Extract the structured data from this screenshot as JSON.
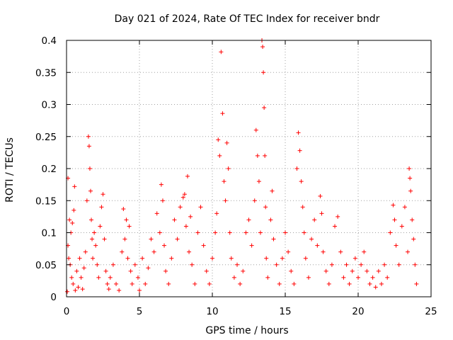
{
  "chart_data": {
    "type": "scatter",
    "title": "Day 021 of 2024, Rate Of TEC Index for receiver bndr",
    "xlabel": "GPS time / hours",
    "ylabel": "ROTI / TECUs",
    "xlim": [
      0,
      25
    ],
    "ylim": [
      0,
      0.4
    ],
    "xticks": [
      "0",
      "5",
      "10",
      "15",
      "20",
      "25"
    ],
    "yticks": [
      "0",
      "0.05",
      "0.1",
      "0.15",
      "0.2",
      "0.25",
      "0.3",
      "0.35",
      "0.4"
    ],
    "grid": true,
    "marker": "+",
    "color": "#ff0000",
    "points": [
      [
        0.05,
        0.008
      ],
      [
        0.1,
        0.185
      ],
      [
        0.1,
        0.08
      ],
      [
        0.15,
        0.06
      ],
      [
        0.2,
        0.12
      ],
      [
        0.25,
        0.05
      ],
      [
        0.3,
        0.1
      ],
      [
        0.35,
        0.03
      ],
      [
        0.4,
        0.115
      ],
      [
        0.45,
        0.02
      ],
      [
        0.5,
        0.135
      ],
      [
        0.55,
        0.172
      ],
      [
        0.6,
        0.01
      ],
      [
        0.7,
        0.04
      ],
      [
        0.8,
        0.015
      ],
      [
        0.9,
        0.06
      ],
      [
        1.0,
        0.03
      ],
      [
        1.1,
        0.012
      ],
      [
        1.2,
        0.045
      ],
      [
        1.3,
        0.07
      ],
      [
        1.4,
        0.15
      ],
      [
        1.5,
        0.25
      ],
      [
        1.55,
        0.235
      ],
      [
        1.6,
        0.2
      ],
      [
        1.65,
        0.165
      ],
      [
        1.7,
        0.12
      ],
      [
        1.75,
        0.09
      ],
      [
        1.8,
        0.06
      ],
      [
        1.9,
        0.1
      ],
      [
        2.0,
        0.08
      ],
      [
        2.1,
        0.05
      ],
      [
        2.2,
        0.03
      ],
      [
        2.3,
        0.11
      ],
      [
        2.4,
        0.14
      ],
      [
        2.5,
        0.16
      ],
      [
        2.6,
        0.09
      ],
      [
        2.7,
        0.04
      ],
      [
        2.8,
        0.02
      ],
      [
        2.9,
        0.012
      ],
      [
        3.0,
        0.03
      ],
      [
        3.2,
        0.05
      ],
      [
        3.4,
        0.02
      ],
      [
        3.6,
        0.01
      ],
      [
        3.8,
        0.07
      ],
      [
        3.9,
        0.137
      ],
      [
        4.0,
        0.09
      ],
      [
        4.1,
        0.12
      ],
      [
        4.2,
        0.06
      ],
      [
        4.3,
        0.11
      ],
      [
        4.4,
        0.04
      ],
      [
        4.5,
        0.02
      ],
      [
        4.7,
        0.05
      ],
      [
        4.9,
        0.03
      ],
      [
        5.0,
        0.01
      ],
      [
        5.2,
        0.06
      ],
      [
        5.4,
        0.02
      ],
      [
        5.6,
        0.045
      ],
      [
        5.8,
        0.09
      ],
      [
        6.0,
        0.07
      ],
      [
        6.2,
        0.13
      ],
      [
        6.4,
        0.1
      ],
      [
        6.5,
        0.175
      ],
      [
        6.6,
        0.15
      ],
      [
        6.7,
        0.08
      ],
      [
        6.8,
        0.04
      ],
      [
        7.0,
        0.02
      ],
      [
        7.2,
        0.06
      ],
      [
        7.4,
        0.12
      ],
      [
        7.6,
        0.09
      ],
      [
        7.8,
        0.14
      ],
      [
        8.0,
        0.155
      ],
      [
        8.1,
        0.16
      ],
      [
        8.2,
        0.11
      ],
      [
        8.3,
        0.188
      ],
      [
        8.4,
        0.07
      ],
      [
        8.5,
        0.125
      ],
      [
        8.6,
        0.05
      ],
      [
        8.8,
        0.02
      ],
      [
        9.0,
        0.1
      ],
      [
        9.2,
        0.14
      ],
      [
        9.4,
        0.08
      ],
      [
        9.6,
        0.04
      ],
      [
        9.8,
        0.02
      ],
      [
        10.0,
        0.06
      ],
      [
        10.2,
        0.1
      ],
      [
        10.3,
        0.13
      ],
      [
        10.4,
        0.245
      ],
      [
        10.5,
        0.22
      ],
      [
        10.6,
        0.382
      ],
      [
        10.7,
        0.286
      ],
      [
        10.8,
        0.18
      ],
      [
        10.9,
        0.15
      ],
      [
        11.0,
        0.24
      ],
      [
        11.1,
        0.2
      ],
      [
        11.2,
        0.1
      ],
      [
        11.3,
        0.06
      ],
      [
        11.5,
        0.03
      ],
      [
        11.7,
        0.05
      ],
      [
        11.9,
        0.02
      ],
      [
        12.1,
        0.04
      ],
      [
        12.3,
        0.1
      ],
      [
        12.5,
        0.12
      ],
      [
        12.7,
        0.08
      ],
      [
        12.9,
        0.15
      ],
      [
        13.0,
        0.26
      ],
      [
        13.1,
        0.22
      ],
      [
        13.2,
        0.18
      ],
      [
        13.3,
        0.1
      ],
      [
        13.4,
        0.4
      ],
      [
        13.45,
        0.39
      ],
      [
        13.5,
        0.35
      ],
      [
        13.55,
        0.295
      ],
      [
        13.6,
        0.22
      ],
      [
        13.65,
        0.14
      ],
      [
        13.7,
        0.06
      ],
      [
        13.8,
        0.03
      ],
      [
        14.0,
        0.12
      ],
      [
        14.1,
        0.165
      ],
      [
        14.2,
        0.09
      ],
      [
        14.4,
        0.05
      ],
      [
        14.6,
        0.02
      ],
      [
        14.8,
        0.06
      ],
      [
        15.0,
        0.1
      ],
      [
        15.2,
        0.07
      ],
      [
        15.4,
        0.04
      ],
      [
        15.6,
        0.02
      ],
      [
        15.8,
        0.2
      ],
      [
        15.9,
        0.256
      ],
      [
        16.0,
        0.228
      ],
      [
        16.1,
        0.18
      ],
      [
        16.2,
        0.14
      ],
      [
        16.3,
        0.1
      ],
      [
        16.4,
        0.06
      ],
      [
        16.6,
        0.03
      ],
      [
        16.8,
        0.09
      ],
      [
        17.0,
        0.12
      ],
      [
        17.2,
        0.08
      ],
      [
        17.4,
        0.157
      ],
      [
        17.5,
        0.13
      ],
      [
        17.6,
        0.07
      ],
      [
        17.8,
        0.04
      ],
      [
        18.0,
        0.02
      ],
      [
        18.2,
        0.05
      ],
      [
        18.4,
        0.11
      ],
      [
        18.6,
        0.125
      ],
      [
        18.8,
        0.07
      ],
      [
        19.0,
        0.03
      ],
      [
        19.2,
        0.05
      ],
      [
        19.4,
        0.02
      ],
      [
        19.6,
        0.04
      ],
      [
        19.8,
        0.06
      ],
      [
        20.0,
        0.03
      ],
      [
        20.2,
        0.05
      ],
      [
        20.4,
        0.07
      ],
      [
        20.6,
        0.04
      ],
      [
        20.8,
        0.02
      ],
      [
        21.0,
        0.03
      ],
      [
        21.2,
        0.015
      ],
      [
        21.4,
        0.04
      ],
      [
        21.6,
        0.02
      ],
      [
        21.8,
        0.05
      ],
      [
        22.0,
        0.03
      ],
      [
        22.2,
        0.1
      ],
      [
        22.4,
        0.143
      ],
      [
        22.5,
        0.12
      ],
      [
        22.6,
        0.08
      ],
      [
        22.8,
        0.05
      ],
      [
        23.0,
        0.11
      ],
      [
        23.2,
        0.14
      ],
      [
        23.4,
        0.07
      ],
      [
        23.5,
        0.2
      ],
      [
        23.55,
        0.185
      ],
      [
        23.6,
        0.165
      ],
      [
        23.7,
        0.12
      ],
      [
        23.8,
        0.09
      ],
      [
        23.9,
        0.05
      ],
      [
        24.0,
        0.02
      ]
    ]
  }
}
